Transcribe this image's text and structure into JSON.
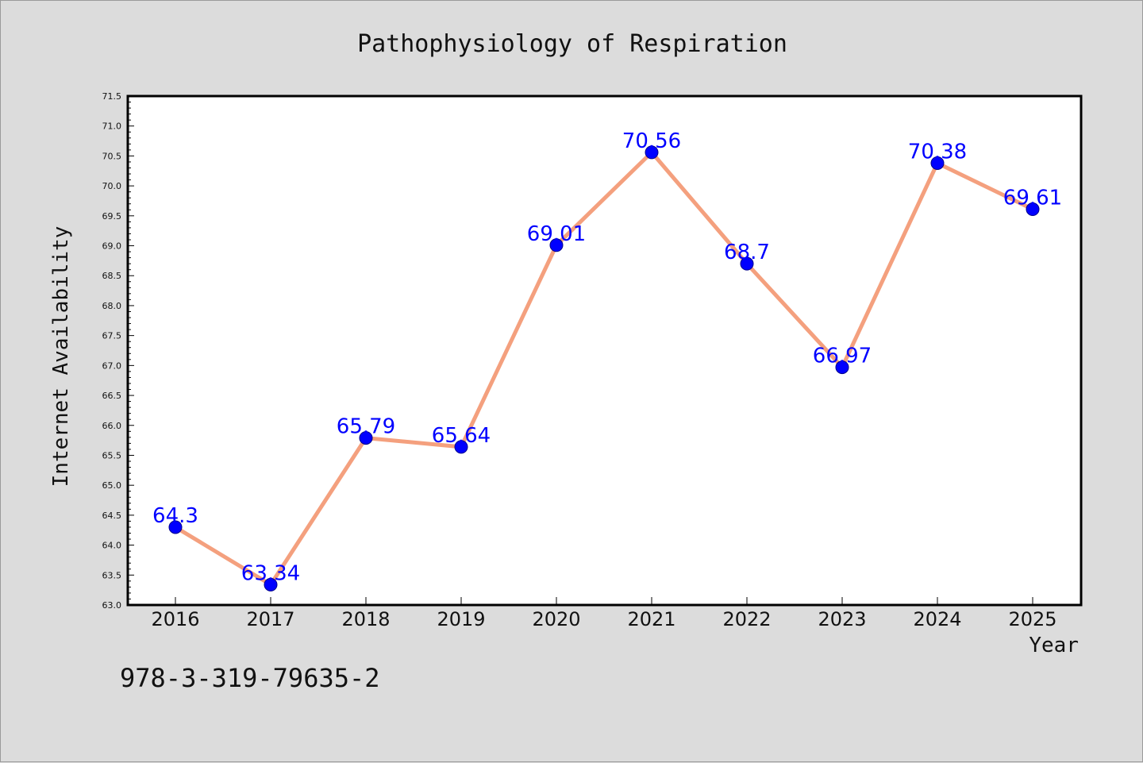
{
  "colors": {
    "background": "#dcdcdc",
    "plot_background": "#ffffff",
    "line": "#f4a07e",
    "marker": "#0000ff",
    "data_label": "#0000ff",
    "axis": "#000000"
  },
  "footer": {
    "code": "978-3-319-79635-2"
  },
  "chart_data": {
    "type": "line",
    "title": "Pathophysiology of Respiration",
    "xlabel": "Year",
    "ylabel": "Internet Availability",
    "categories": [
      "2016",
      "2017",
      "2018",
      "2019",
      "2020",
      "2021",
      "2022",
      "2023",
      "2024",
      "2025"
    ],
    "series": [
      {
        "values": [
          64.3,
          63.34,
          65.79,
          65.64,
          69.01,
          70.56,
          68.7,
          66.97,
          70.38,
          69.61
        ],
        "data_labels": [
          "64.3",
          "63.34",
          "65.79",
          "65.64",
          "69.01",
          "70.56",
          "68.7",
          "66.97",
          "70.38",
          "69.61"
        ]
      }
    ],
    "ylim": [
      63.0,
      71.5
    ],
    "yticks": [
      "63.0",
      "63.5",
      "64.0",
      "64.5",
      "65.0",
      "65.5",
      "66.0",
      "66.5",
      "67.0",
      "67.5",
      "68.0",
      "68.5",
      "69.0",
      "69.5",
      "70.0",
      "70.5",
      "71.0",
      "71.5"
    ],
    "grid": false,
    "legend": "none"
  }
}
